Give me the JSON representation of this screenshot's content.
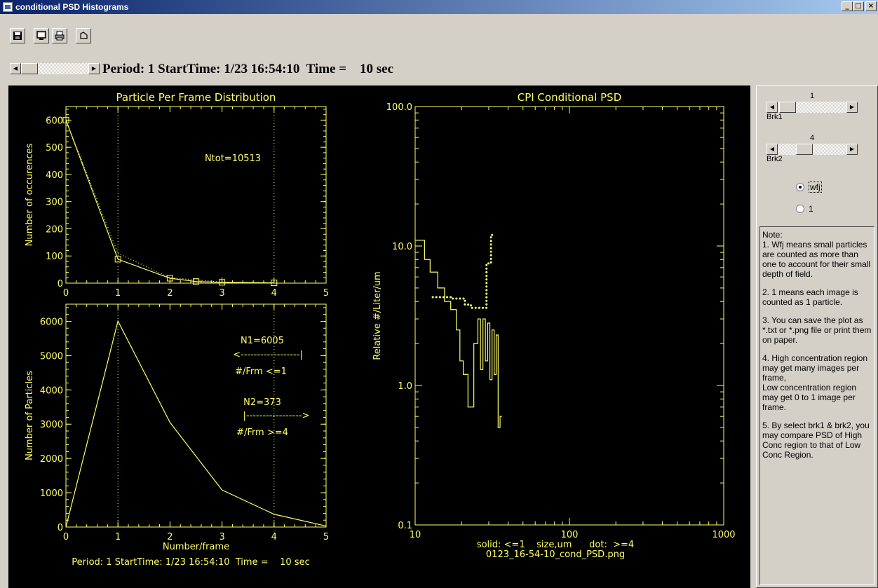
{
  "window": {
    "title": "conditional PSD Histograms"
  },
  "toolbar": {
    "save_icon": "floppy-disk-icon",
    "screen_icon": "monitor-icon",
    "print_icon": "printer-icon",
    "refresh_icon": "refresh-icon"
  },
  "header": {
    "info": "Period: 1 StartTime: 1/23 16:54:10  Time =    10 sec"
  },
  "colors": {
    "plot_bg": "#000000",
    "plot_fg": "#ffff66",
    "panel_bg": "#d4d0c8"
  },
  "controls": {
    "brk1": {
      "value": "1",
      "label": "Brk1"
    },
    "brk2": {
      "value": "4",
      "label": "Brk2"
    },
    "radio_options": [
      {
        "label": "wfj",
        "selected": true
      },
      {
        "label": "1",
        "selected": false
      }
    ]
  },
  "note": [
    "Note:",
    "1. Wfj means small particles are counted as more than one to account for their small depth of field.",
    "2. 1  means each  image is counted as 1 particle.",
    "3. You can save the plot as *.txt or *.png file  or print them on paper.",
    "4. High concentration region may get many images per frame,\n    Low concentration region may get 0 to 1 image per frame.",
    "5. By select brk1 & brk2, you may compare PSD of High Conc region to that of Low Conc Region."
  ],
  "chart_data": [
    {
      "type": "line",
      "title": "Particle Per Frame Distribution",
      "xlabel": "",
      "ylabel": "Number of occurences",
      "xlim": [
        0,
        5
      ],
      "ylim": [
        0,
        650
      ],
      "xticks": [
        0,
        1,
        2,
        3,
        4,
        5
      ],
      "yticks": [
        0,
        100,
        200,
        300,
        400,
        500,
        600
      ],
      "vlines": [
        1,
        4
      ],
      "annotations": [
        "Ntot=10513"
      ],
      "series": [
        {
          "style": "solid-square-markers",
          "x": [
            0,
            1,
            2,
            2.5,
            3,
            4
          ],
          "y": [
            600,
            88,
            18,
            6,
            3,
            1
          ]
        },
        {
          "style": "dotted",
          "x": [
            0,
            1,
            2,
            3,
            4
          ],
          "y": [
            600,
            110,
            20,
            4,
            1
          ]
        }
      ]
    },
    {
      "type": "line",
      "title": "",
      "xlabel": "Number/frame",
      "ylabel": "Number of Particles",
      "xlim": [
        0,
        5
      ],
      "ylim": [
        0,
        6500
      ],
      "xticks": [
        0,
        1,
        2,
        3,
        4,
        5
      ],
      "yticks": [
        0,
        1000,
        2000,
        3000,
        4000,
        5000,
        6000
      ],
      "vlines": [
        1,
        4
      ],
      "annotations": [
        "N1=6005",
        "<------------------|",
        "#/Frm <=1",
        "N2=373",
        "|----------------->",
        "#/Frm >=4"
      ],
      "footer": "Period: 1 StartTime: 1/23 16:54:10  Time =    10 sec",
      "series": [
        {
          "style": "solid",
          "x": [
            0,
            1,
            2,
            3,
            4,
            5
          ],
          "y": [
            0,
            6005,
            3050,
            1080,
            373,
            30
          ]
        }
      ]
    },
    {
      "type": "line",
      "title": "CPI Conditional PSD",
      "xlabel": "solid: <=1    size,um      dot:  >=4",
      "ylabel": "Relative #/Liter/um",
      "caption": "0123_16-54-10_cond_PSD.png",
      "xscale": "log",
      "yscale": "log",
      "xlim": [
        10,
        1000
      ],
      "ylim": [
        0.1,
        100
      ],
      "xtick_labels": [
        "10",
        "100",
        "1000"
      ],
      "ytick_labels": [
        "0.1",
        "1.0",
        "10.0",
        "100.0"
      ],
      "series": [
        {
          "style": "solid-step",
          "edges": [
            10,
            11.5,
            12.5,
            14,
            15.5,
            17,
            18.5,
            19.5,
            20.5,
            22,
            24,
            25.5,
            26.5,
            27.5,
            28.5,
            29.5,
            30.5,
            31.5,
            32.5,
            33.5,
            34.5,
            35.5,
            36.5
          ],
          "values": [
            11,
            8,
            6.5,
            5,
            4,
            3.5,
            2.5,
            1.5,
            1.2,
            0.7,
            2,
            3,
            1.3,
            3,
            1.5,
            2.8,
            1.1,
            2.5,
            1.2,
            2.3,
            0.5,
            0.6
          ]
        },
        {
          "style": "dotted-step",
          "edges": [
            13,
            15,
            17,
            19,
            21,
            23,
            25,
            27,
            29,
            31,
            33
          ],
          "values": [
            4.3,
            4.3,
            4.2,
            4.2,
            3.8,
            3.6,
            3.6,
            3.6,
            7.5,
            12
          ]
        }
      ]
    }
  ]
}
